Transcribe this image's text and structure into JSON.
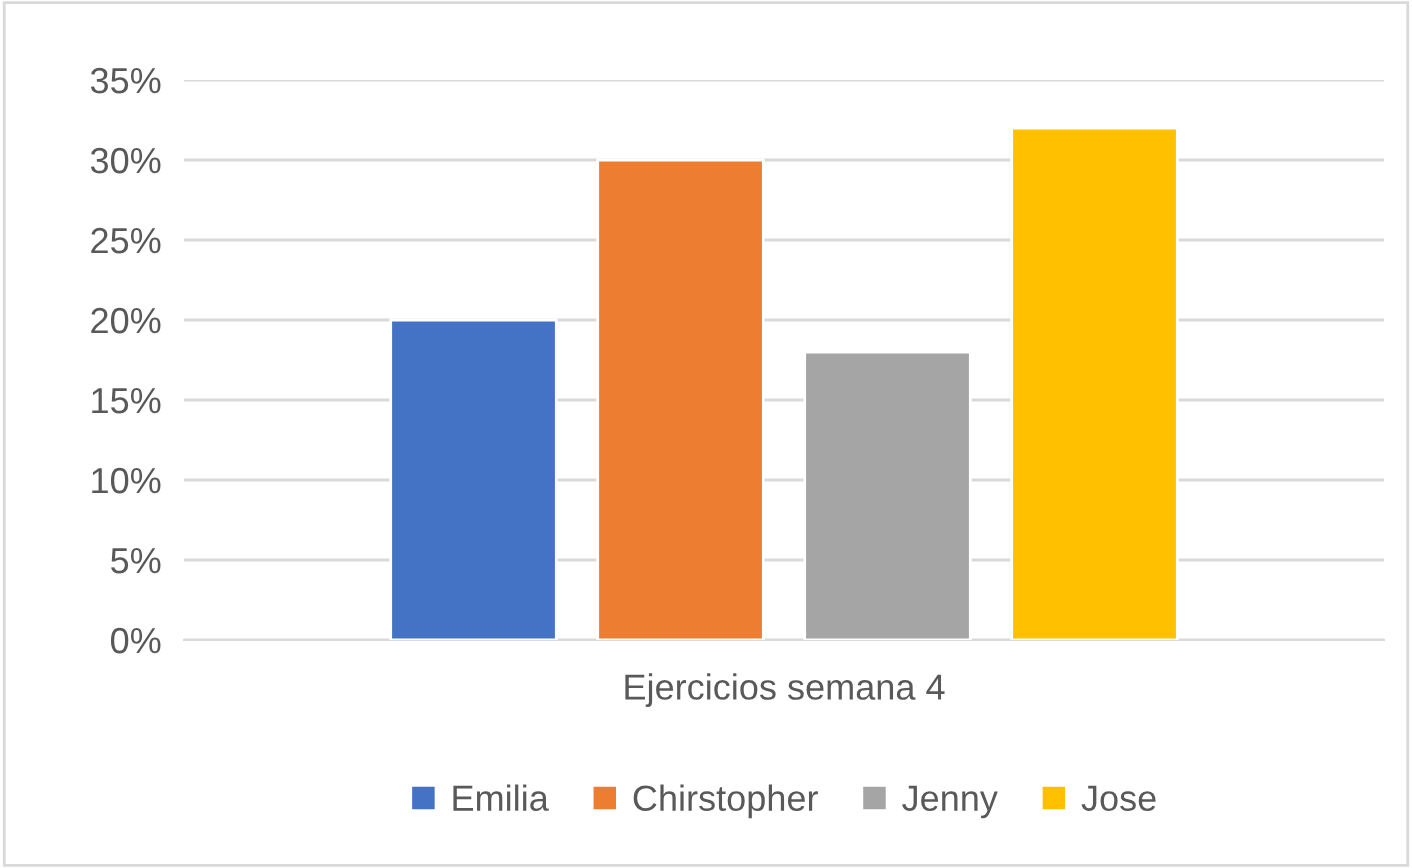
{
  "chart_data": {
    "type": "bar",
    "categories": [
      "Ejercicios semana 4"
    ],
    "series": [
      {
        "name": "Emilia",
        "color": "#4472c4",
        "values": [
          20
        ]
      },
      {
        "name": "Chirstopher",
        "color": "#ed7d31",
        "values": [
          30
        ]
      },
      {
        "name": "Jenny",
        "color": "#a5a5a5",
        "values": [
          18
        ]
      },
      {
        "name": "Jose",
        "color": "#ffc000",
        "values": [
          32
        ]
      }
    ],
    "ylim": [
      0,
      35
    ],
    "yticks": [
      {
        "value": 0,
        "label": "0%"
      },
      {
        "value": 5,
        "label": "5%"
      },
      {
        "value": 10,
        "label": "10%"
      },
      {
        "value": 15,
        "label": "15%"
      },
      {
        "value": 20,
        "label": "20%"
      },
      {
        "value": 25,
        "label": "25%"
      },
      {
        "value": 30,
        "label": "30%"
      },
      {
        "value": 35,
        "label": "35%"
      }
    ],
    "grid": "y",
    "legend": "bottom"
  }
}
